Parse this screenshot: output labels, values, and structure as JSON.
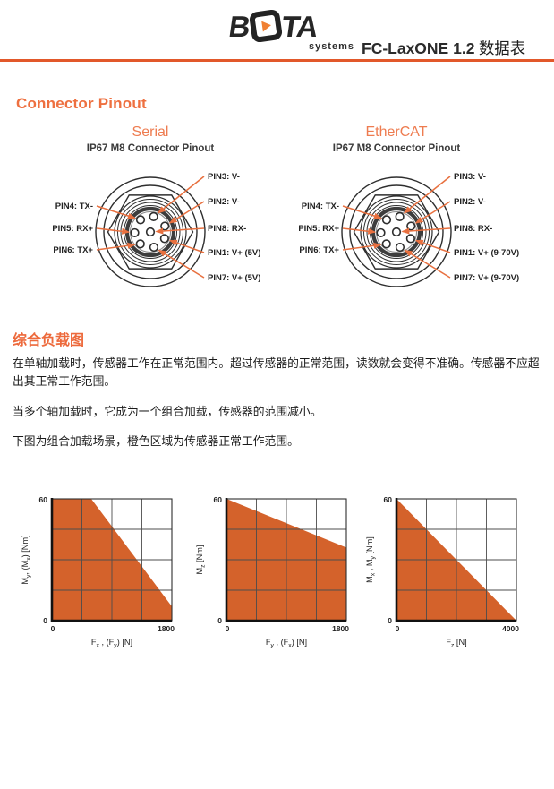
{
  "header": {
    "brand": "BOTA systems",
    "brand_b": "B",
    "brand_ta": "TA",
    "brand_sub": "systems",
    "title_en": "FC-LaxONE 1.2",
    "title_zh": " 数据表",
    "rule_color": "#e2582a"
  },
  "sections": {
    "connector_pinout": {
      "heading": "Connector Pinout"
    },
    "load_diagrams": {
      "heading": "综合负载图",
      "paragraphs": [
        "在单轴加载时，传感器工作在正常范围内。超过传感器的正常范围，读数就会变得不准确。传感器不应超出其正常工作范围。",
        "当多个轴加载时，它成为一个组合加载，传感器的范围减小。",
        "下图为组合加载场景，橙色区域为传感器正常工作范围。"
      ]
    }
  },
  "connectors": [
    {
      "id": "serial",
      "title": "Serial",
      "subtitle": "IP67 M8 Connector Pinout",
      "left_pins": [
        {
          "pin": "4",
          "label": "PIN4: TX-"
        },
        {
          "pin": "5",
          "label": "PIN5: RX+"
        },
        {
          "pin": "6",
          "label": "PIN6: TX+"
        }
      ],
      "right_pins": [
        {
          "pin": "3",
          "label": "PIN3: V-"
        },
        {
          "pin": "2",
          "label": "PIN2: V-"
        },
        {
          "pin": "8",
          "label": "PIN8: RX-"
        },
        {
          "pin": "1",
          "label": "PIN1: V+ (5V)"
        },
        {
          "pin": "7",
          "label": "PIN7: V+ (5V)"
        }
      ]
    },
    {
      "id": "ethercat",
      "title": "EtherCAT",
      "subtitle": "IP67 M8 Connector Pinout",
      "left_pins": [
        {
          "pin": "4",
          "label": "PIN4: TX-"
        },
        {
          "pin": "5",
          "label": "PIN5: RX+"
        },
        {
          "pin": "6",
          "label": "PIN6: TX+"
        }
      ],
      "right_pins": [
        {
          "pin": "3",
          "label": "PIN3: V-"
        },
        {
          "pin": "2",
          "label": "PIN2: V-"
        },
        {
          "pin": "8",
          "label": "PIN8: RX-"
        },
        {
          "pin": "1",
          "label": "PIN1: V+ (9-70V)"
        },
        {
          "pin": "7",
          "label": "PIN7: V+ (9-70V)"
        }
      ]
    }
  ],
  "chart_data": [
    {
      "type": "area",
      "title": "combined load: bending moment vs lateral force",
      "xlabel": "F_x , (F_y) [N]",
      "ylabel": "M_y, (M_x) [Nm]",
      "xlabel_parts": [
        {
          "t": "F"
        },
        {
          "t": "x",
          "sub": true
        },
        {
          "t": " , (F"
        },
        {
          "t": "y",
          "sub": true
        },
        {
          "t": ") [N]"
        }
      ],
      "ylabel_parts": [
        {
          "t": "M"
        },
        {
          "t": "y",
          "sub": true
        },
        {
          "t": ", (M"
        },
        {
          "t": "x",
          "sub": true
        },
        {
          "t": ") [Nm]"
        }
      ],
      "xlim": [
        0,
        1800
      ],
      "ylim": [
        0,
        60
      ],
      "x_ticks": [
        "0",
        "1800"
      ],
      "y_ticks": [
        "0",
        "60"
      ],
      "grid_divisions": 4,
      "grid": true,
      "legend": false,
      "boundary": [
        [
          0,
          60
        ],
        [
          590,
          60
        ],
        [
          1800,
          7
        ]
      ],
      "fill_below": true
    },
    {
      "type": "area",
      "title": "combined load: torsion vs lateral force",
      "xlabel": "F_y , (F_x) [N]",
      "ylabel": "M_z [Nm]",
      "xlabel_parts": [
        {
          "t": "F"
        },
        {
          "t": "y",
          "sub": true
        },
        {
          "t": " , (F"
        },
        {
          "t": "x",
          "sub": true
        },
        {
          "t": ") [N]"
        }
      ],
      "ylabel_parts": [
        {
          "t": "M"
        },
        {
          "t": "z",
          "sub": true
        },
        {
          "t": " [Nm]"
        }
      ],
      "xlim": [
        0,
        1800
      ],
      "ylim": [
        0,
        60
      ],
      "x_ticks": [
        "0",
        "1800"
      ],
      "y_ticks": [
        "0",
        "60"
      ],
      "grid_divisions": 4,
      "grid": true,
      "legend": false,
      "boundary": [
        [
          0,
          60
        ],
        [
          1800,
          36
        ]
      ],
      "fill_below": true
    },
    {
      "type": "area",
      "title": "combined load: bending moment vs axial force",
      "xlabel": "F_z [N]",
      "ylabel": "M_x , M_y [Nm]",
      "xlabel_parts": [
        {
          "t": "F"
        },
        {
          "t": "z",
          "sub": true
        },
        {
          "t": " [N]"
        }
      ],
      "ylabel_parts": [
        {
          "t": "M"
        },
        {
          "t": "x",
          "sub": true
        },
        {
          "t": " , M"
        },
        {
          "t": "y",
          "sub": true
        },
        {
          "t": " [Nm]"
        }
      ],
      "xlim": [
        0,
        4000
      ],
      "ylim": [
        0,
        60
      ],
      "x_ticks": [
        "0",
        "4000"
      ],
      "y_ticks": [
        "0",
        "60"
      ],
      "grid_divisions": 4,
      "grid": true,
      "legend": false,
      "boundary": [
        [
          0,
          60
        ],
        [
          4000,
          0
        ]
      ],
      "fill_below": true
    }
  ],
  "colors": {
    "accent_heading": "#ee7040",
    "chart_fill": "#d4622b",
    "arrow": "#e8703f",
    "rule": "#e2582a"
  }
}
